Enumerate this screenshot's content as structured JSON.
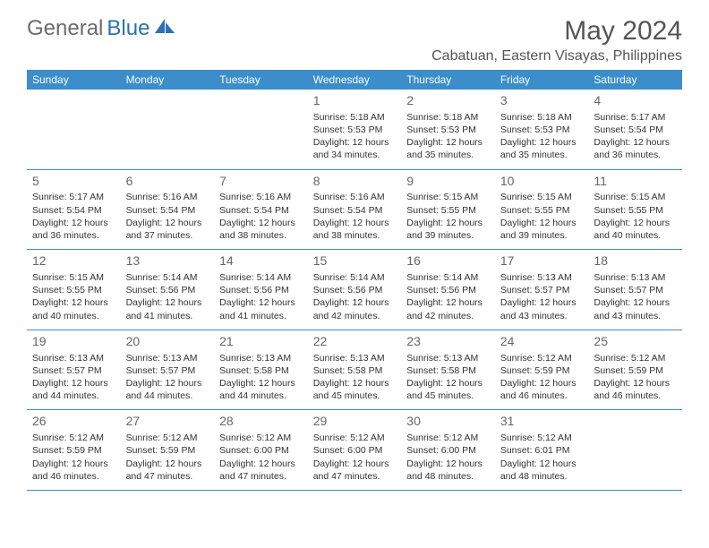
{
  "logo": {
    "general": "General",
    "blue": "Blue"
  },
  "title": "May 2024",
  "location": "Cabatuan, Eastern Visayas, Philippines",
  "weekday_bg": "#3c8dcc",
  "weekday_fg": "#ffffff",
  "border_color": "#3c8dcc",
  "text_color": "#333333",
  "weekdays": [
    "Sunday",
    "Monday",
    "Tuesday",
    "Wednesday",
    "Thursday",
    "Friday",
    "Saturday"
  ],
  "weeks": [
    [
      {
        "num": "",
        "lines": []
      },
      {
        "num": "",
        "lines": []
      },
      {
        "num": "",
        "lines": []
      },
      {
        "num": "1",
        "lines": [
          "Sunrise: 5:18 AM",
          "Sunset: 5:53 PM",
          "Daylight: 12 hours and 34 minutes."
        ]
      },
      {
        "num": "2",
        "lines": [
          "Sunrise: 5:18 AM",
          "Sunset: 5:53 PM",
          "Daylight: 12 hours and 35 minutes."
        ]
      },
      {
        "num": "3",
        "lines": [
          "Sunrise: 5:18 AM",
          "Sunset: 5:53 PM",
          "Daylight: 12 hours and 35 minutes."
        ]
      },
      {
        "num": "4",
        "lines": [
          "Sunrise: 5:17 AM",
          "Sunset: 5:54 PM",
          "Daylight: 12 hours and 36 minutes."
        ]
      }
    ],
    [
      {
        "num": "5",
        "lines": [
          "Sunrise: 5:17 AM",
          "Sunset: 5:54 PM",
          "Daylight: 12 hours and 36 minutes."
        ]
      },
      {
        "num": "6",
        "lines": [
          "Sunrise: 5:16 AM",
          "Sunset: 5:54 PM",
          "Daylight: 12 hours and 37 minutes."
        ]
      },
      {
        "num": "7",
        "lines": [
          "Sunrise: 5:16 AM",
          "Sunset: 5:54 PM",
          "Daylight: 12 hours and 38 minutes."
        ]
      },
      {
        "num": "8",
        "lines": [
          "Sunrise: 5:16 AM",
          "Sunset: 5:54 PM",
          "Daylight: 12 hours and 38 minutes."
        ]
      },
      {
        "num": "9",
        "lines": [
          "Sunrise: 5:15 AM",
          "Sunset: 5:55 PM",
          "Daylight: 12 hours and 39 minutes."
        ]
      },
      {
        "num": "10",
        "lines": [
          "Sunrise: 5:15 AM",
          "Sunset: 5:55 PM",
          "Daylight: 12 hours and 39 minutes."
        ]
      },
      {
        "num": "11",
        "lines": [
          "Sunrise: 5:15 AM",
          "Sunset: 5:55 PM",
          "Daylight: 12 hours and 40 minutes."
        ]
      }
    ],
    [
      {
        "num": "12",
        "lines": [
          "Sunrise: 5:15 AM",
          "Sunset: 5:55 PM",
          "Daylight: 12 hours and 40 minutes."
        ]
      },
      {
        "num": "13",
        "lines": [
          "Sunrise: 5:14 AM",
          "Sunset: 5:56 PM",
          "Daylight: 12 hours and 41 minutes."
        ]
      },
      {
        "num": "14",
        "lines": [
          "Sunrise: 5:14 AM",
          "Sunset: 5:56 PM",
          "Daylight: 12 hours and 41 minutes."
        ]
      },
      {
        "num": "15",
        "lines": [
          "Sunrise: 5:14 AM",
          "Sunset: 5:56 PM",
          "Daylight: 12 hours and 42 minutes."
        ]
      },
      {
        "num": "16",
        "lines": [
          "Sunrise: 5:14 AM",
          "Sunset: 5:56 PM",
          "Daylight: 12 hours and 42 minutes."
        ]
      },
      {
        "num": "17",
        "lines": [
          "Sunrise: 5:13 AM",
          "Sunset: 5:57 PM",
          "Daylight: 12 hours and 43 minutes."
        ]
      },
      {
        "num": "18",
        "lines": [
          "Sunrise: 5:13 AM",
          "Sunset: 5:57 PM",
          "Daylight: 12 hours and 43 minutes."
        ]
      }
    ],
    [
      {
        "num": "19",
        "lines": [
          "Sunrise: 5:13 AM",
          "Sunset: 5:57 PM",
          "Daylight: 12 hours and 44 minutes."
        ]
      },
      {
        "num": "20",
        "lines": [
          "Sunrise: 5:13 AM",
          "Sunset: 5:57 PM",
          "Daylight: 12 hours and 44 minutes."
        ]
      },
      {
        "num": "21",
        "lines": [
          "Sunrise: 5:13 AM",
          "Sunset: 5:58 PM",
          "Daylight: 12 hours and 44 minutes."
        ]
      },
      {
        "num": "22",
        "lines": [
          "Sunrise: 5:13 AM",
          "Sunset: 5:58 PM",
          "Daylight: 12 hours and 45 minutes."
        ]
      },
      {
        "num": "23",
        "lines": [
          "Sunrise: 5:13 AM",
          "Sunset: 5:58 PM",
          "Daylight: 12 hours and 45 minutes."
        ]
      },
      {
        "num": "24",
        "lines": [
          "Sunrise: 5:12 AM",
          "Sunset: 5:59 PM",
          "Daylight: 12 hours and 46 minutes."
        ]
      },
      {
        "num": "25",
        "lines": [
          "Sunrise: 5:12 AM",
          "Sunset: 5:59 PM",
          "Daylight: 12 hours and 46 minutes."
        ]
      }
    ],
    [
      {
        "num": "26",
        "lines": [
          "Sunrise: 5:12 AM",
          "Sunset: 5:59 PM",
          "Daylight: 12 hours and 46 minutes."
        ]
      },
      {
        "num": "27",
        "lines": [
          "Sunrise: 5:12 AM",
          "Sunset: 5:59 PM",
          "Daylight: 12 hours and 47 minutes."
        ]
      },
      {
        "num": "28",
        "lines": [
          "Sunrise: 5:12 AM",
          "Sunset: 6:00 PM",
          "Daylight: 12 hours and 47 minutes."
        ]
      },
      {
        "num": "29",
        "lines": [
          "Sunrise: 5:12 AM",
          "Sunset: 6:00 PM",
          "Daylight: 12 hours and 47 minutes."
        ]
      },
      {
        "num": "30",
        "lines": [
          "Sunrise: 5:12 AM",
          "Sunset: 6:00 PM",
          "Daylight: 12 hours and 48 minutes."
        ]
      },
      {
        "num": "31",
        "lines": [
          "Sunrise: 5:12 AM",
          "Sunset: 6:01 PM",
          "Daylight: 12 hours and 48 minutes."
        ]
      },
      {
        "num": "",
        "lines": []
      }
    ]
  ]
}
